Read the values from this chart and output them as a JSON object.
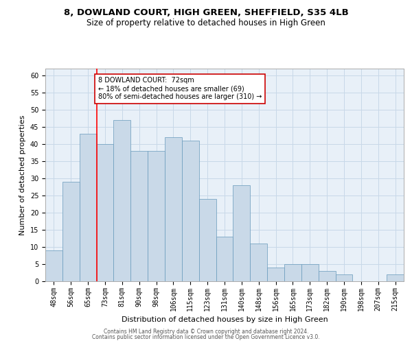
{
  "title1": "8, DOWLAND COURT, HIGH GREEN, SHEFFIELD, S35 4LB",
  "title2": "Size of property relative to detached houses in High Green",
  "xlabel": "Distribution of detached houses by size in High Green",
  "ylabel": "Number of detached properties",
  "categories": [
    "48sqm",
    "56sqm",
    "65sqm",
    "73sqm",
    "81sqm",
    "90sqm",
    "98sqm",
    "106sqm",
    "115sqm",
    "123sqm",
    "131sqm",
    "140sqm",
    "148sqm",
    "156sqm",
    "165sqm",
    "173sqm",
    "182sqm",
    "190sqm",
    "198sqm",
    "207sqm",
    "215sqm"
  ],
  "values": [
    9,
    29,
    43,
    40,
    47,
    38,
    38,
    42,
    41,
    24,
    13,
    28,
    11,
    4,
    5,
    5,
    3,
    2,
    0,
    0,
    2
  ],
  "bar_color": "#c9d9e8",
  "bar_edge_color": "#6699bb",
  "background_color": "#ffffff",
  "grid_color": "#c8d8e8",
  "red_line_index": 3,
  "annotation_text": "8 DOWLAND COURT:  72sqm\n← 18% of detached houses are smaller (69)\n80% of semi-detached houses are larger (310) →",
  "annotation_box_color": "#ffffff",
  "annotation_box_edge": "#cc0000",
  "ylim": [
    0,
    62
  ],
  "yticks": [
    0,
    5,
    10,
    15,
    20,
    25,
    30,
    35,
    40,
    45,
    50,
    55,
    60
  ],
  "footer1": "Contains HM Land Registry data © Crown copyright and database right 2024.",
  "footer2": "Contains public sector information licensed under the Open Government Licence v3.0.",
  "title1_fontsize": 9.5,
  "title2_fontsize": 8.5,
  "tick_fontsize": 7,
  "ylabel_fontsize": 8,
  "xlabel_fontsize": 8,
  "annotation_fontsize": 7,
  "footer_fontsize": 5.5
}
